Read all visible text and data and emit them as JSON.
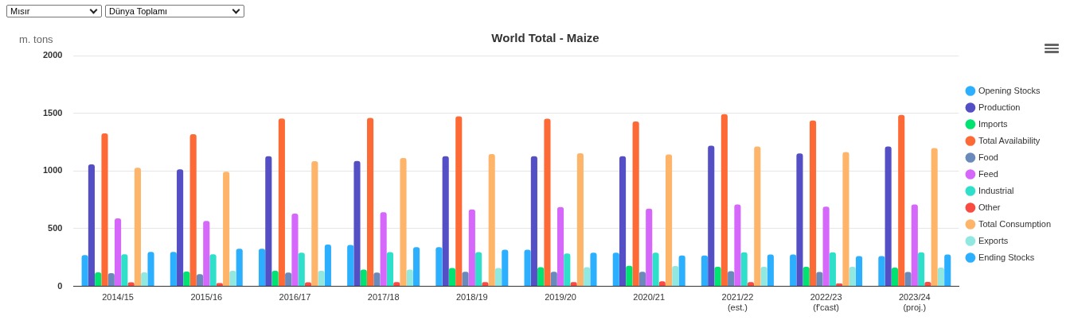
{
  "chart_data": {
    "type": "bar",
    "title": "World Total - Maize",
    "ylabel": "m. tons",
    "annotations": [
      "Mısır",
      "Dünya Toplamı"
    ],
    "categories": [
      "2014/15",
      "2015/16",
      "2016/17",
      "2017/18",
      "2018/19",
      "2019/20",
      "2020/21",
      "2021/22\n(est.)",
      "2022/23\n(f'cast)",
      "2023/24\n(proj.)"
    ],
    "series": [
      {
        "name": "Opening Stocks",
        "color": "#2caffe",
        "values": [
          270,
          298,
          326,
          358,
          339,
          318,
          292,
          267,
          276,
          262
        ]
      },
      {
        "name": "Production",
        "color": "#544fc5",
        "values": [
          1057,
          1014,
          1128,
          1087,
          1127,
          1127,
          1127,
          1219,
          1152,
          1212
        ]
      },
      {
        "name": "Imports",
        "color": "#00e272",
        "values": [
          121,
          128,
          135,
          145,
          159,
          166,
          178,
          169,
          169,
          162
        ]
      },
      {
        "name": "Total Availability",
        "color": "#fe6a35",
        "values": [
          1326,
          1319,
          1454,
          1459,
          1474,
          1452,
          1429,
          1493,
          1438,
          1486
        ]
      },
      {
        "name": "Food",
        "color": "#6b8abc",
        "values": [
          115,
          106,
          120,
          119,
          126,
          126,
          126,
          131,
          124,
          124
        ]
      },
      {
        "name": "Feed",
        "color": "#d568fb",
        "values": [
          589,
          567,
          631,
          643,
          667,
          688,
          674,
          710,
          690,
          710
        ]
      },
      {
        "name": "Industrial",
        "color": "#2ee0ca",
        "values": [
          277,
          277,
          291,
          297,
          297,
          285,
          292,
          295,
          295,
          295
        ]
      },
      {
        "name": "Other",
        "color": "#fa4b42",
        "values": [
          35,
          28,
          35,
          36,
          36,
          36,
          43,
          36,
          24,
          38
        ]
      },
      {
        "name": "Total Consumption",
        "color": "#feb56a",
        "values": [
          1028,
          993,
          1085,
          1113,
          1146,
          1153,
          1143,
          1212,
          1164,
          1198
        ]
      },
      {
        "name": "Exports",
        "color": "#91e8e1",
        "values": [
          121,
          135,
          135,
          145,
          159,
          166,
          176,
          169,
          169,
          162
        ]
      },
      {
        "name": "Ending Stocks",
        "color": "#2caffe",
        "values": [
          298,
          326,
          362,
          339,
          318,
          292,
          267,
          276,
          262,
          276
        ]
      }
    ],
    "ylim": [
      0,
      2000
    ],
    "yticks": [
      0,
      500,
      1000,
      1500,
      2000
    ],
    "grid": "y",
    "legend": "right"
  }
}
